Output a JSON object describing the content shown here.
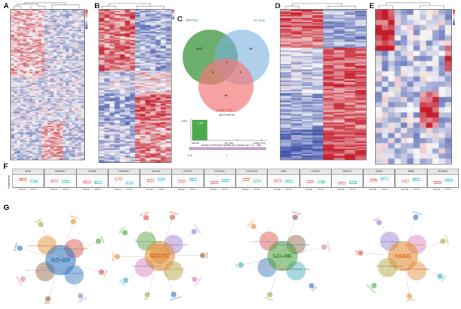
{
  "panels": {
    "A": "A",
    "B": "B",
    "C": "C",
    "D": "D",
    "E": "E",
    "F": "F",
    "G": "G"
  },
  "colors": {
    "up": "#c51b2a",
    "mid": "#f7f7f7",
    "down": "#3b4ea8",
    "normal": "#e5534b",
    "pcos": "#1ab6c3",
    "venn_green": "#2e8b2e",
    "venn_blue": "#7ab0e0",
    "venn_red": "#f27a7a"
  },
  "venn": {
    "sets": [
      "WGCNA",
      "Up_Reg",
      "Down_Reg"
    ],
    "counts": {
      "wgcna_only": "2027",
      "up_only": "60",
      "down_only": "98",
      "wgcna_up": "7",
      "wgcna_down": "6",
      "up_down": "3",
      "all": "0"
    }
  },
  "upset": {
    "title": "Bar of inset bar",
    "left_label": "1,000",
    "bar_label": "2,027",
    "axis_labels": [
      "Normal",
      "Up_Reg",
      "Down_Reg"
    ],
    "caption": "Number of elements: specific (1) or shared by 2, 3, ... lists",
    "footer_left": "0 (4)",
    "footer_right": "1"
  },
  "boxplots": {
    "ylabel": "Expression",
    "xlabels": [
      "Normal",
      "PCOS"
    ],
    "genes": [
      "BCL3",
      "CAMK2N1",
      "CAPN3",
      "FRA10AC1",
      "GALNT1",
      "GTF2H2",
      "GTF2H2C",
      "GTF2H2C2",
      "IL6R",
      "MTMR4",
      "NFE2L3",
      "NR4A1",
      "RBM3",
      "SLC30A1"
    ]
  },
  "networks": [
    {
      "center": "GO−BP",
      "color": "#2c6fbb",
      "outer": [
        "GALNT1",
        "CAPN3",
        "BCL3",
        "GTF2H2",
        "IL6R",
        "CAMK2N1",
        "MTMR4",
        "NR4A1"
      ],
      "terms": [
        "regulation of phospholipase activity metabolic process",
        "protein O-linked glycosylation via serine",
        "positive regulation of transcription by RNA polymerase II",
        "response to nutrient levels"
      ]
    },
    {
      "center": "GO−CC",
      "color": "#e08a2c",
      "outer": [
        "GTF2H2",
        "GTF2H2C",
        "BCL3",
        "FRA10AC1",
        "GTF2H2C2",
        "IL6R",
        "CAPN3",
        "MTMR4",
        "NR4A1",
        "SLC30A1"
      ],
      "terms": [
        "transcription factor TFIID complex",
        "nucleotide-excision repair factor 3 complex",
        "transcription factor TFIIH holo complex",
        "RNA polymerase II, holoenzyme",
        "catalytic step 2 spliceosome"
      ]
    },
    {
      "center": "GO−MF",
      "color": "#4a9e3a",
      "outer": [
        "GTF2H2",
        "GTF2H2C",
        "BCL3",
        "NFE2L3",
        "IL6R",
        "GALNT1"
      ],
      "terms": [
        "polypeptide N-acetylgalactosaminyltransferase activity",
        "ubiquitin-like protein transferase activity",
        "transcription factor binding",
        "protein serine/threonine kinase activity"
      ]
    },
    {
      "center": "KEGG",
      "color": "#e08a2c",
      "outer": [
        "GTF2H2",
        "GTF2H2C",
        "CAPN3",
        "GALNT1",
        "GTF2H2C2",
        "IL6R",
        "NR4A1"
      ],
      "terms": [
        "Basal transcription factors",
        "Nucleotide excision repair",
        "Mucin type O-glycan biosynthesis",
        "Other types of O-glycan biosynthesis"
      ]
    }
  ]
}
